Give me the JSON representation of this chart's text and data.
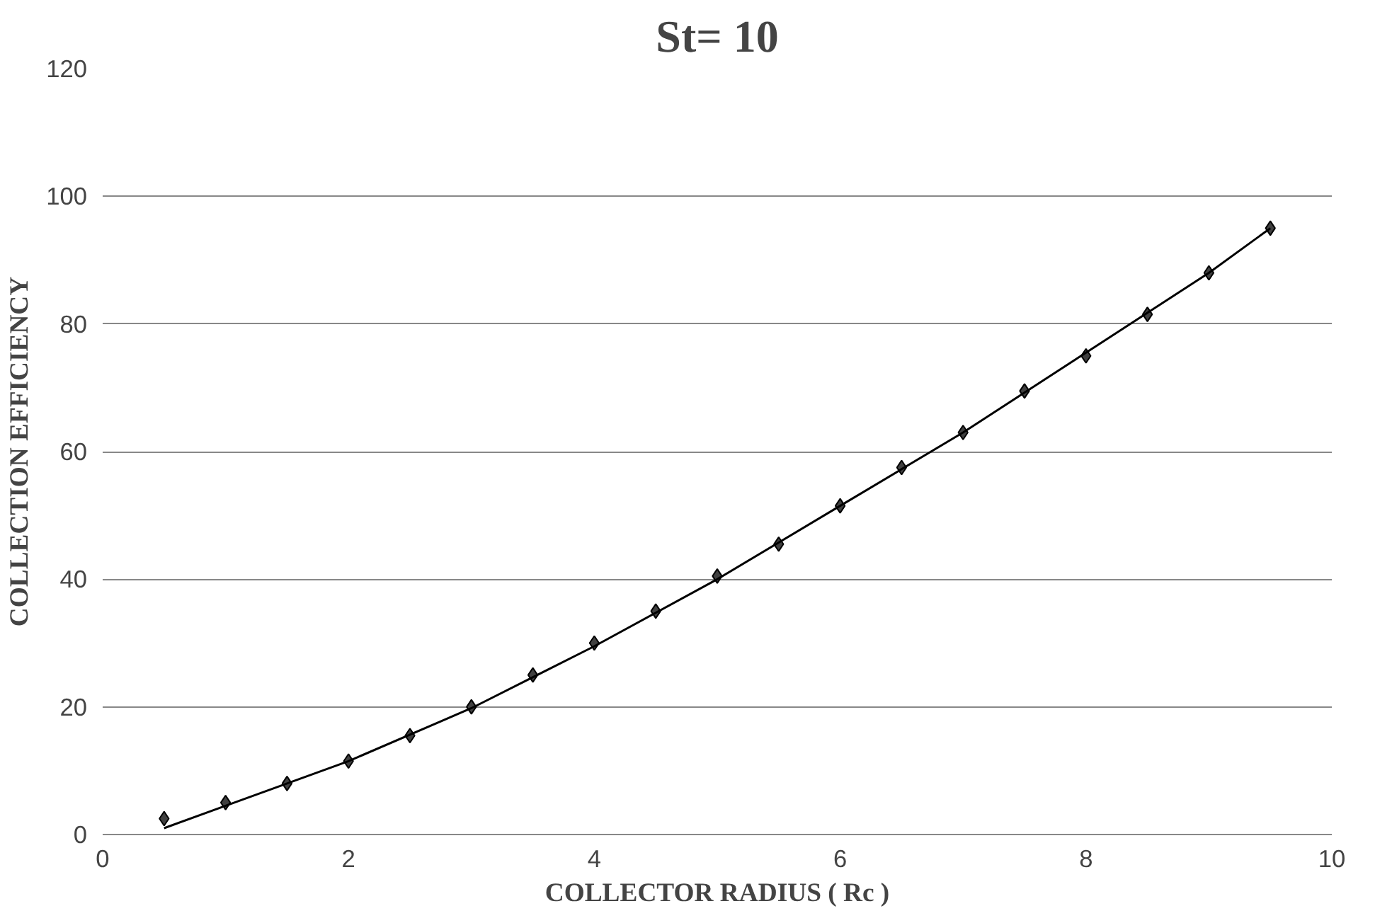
{
  "chart_data": {
    "type": "scatter",
    "title": "St= 10",
    "xlabel": "COLLECTOR RADIUS ( Rc )",
    "ylabel": "COLLECTION EFFICIENCY",
    "x": [
      0.5,
      1,
      1.5,
      2,
      2.5,
      3,
      3.5,
      4,
      4.5,
      5,
      5.5,
      6,
      6.5,
      7,
      7.5,
      8,
      8.5,
      9,
      9.5
    ],
    "series": [
      {
        "color": "#404040",
        "marker": "diamond",
        "values": [
          2.5,
          5,
          8,
          11.5,
          15.5,
          20,
          25,
          30,
          35,
          40.5,
          45.5,
          51.5,
          57.5,
          63,
          69.5,
          75,
          81.5,
          88,
          95
        ]
      },
      {
        "type": "line",
        "color": "#000000",
        "marker": "none",
        "line_style": "solid",
        "x": [
          0.5,
          1,
          2,
          3,
          4,
          5,
          6,
          7,
          8,
          9,
          9.5
        ],
        "values": [
          1,
          4.5,
          11.5,
          19.8,
          29.5,
          40,
          51.5,
          63,
          75.5,
          88,
          95
        ]
      }
    ],
    "xlim": [
      0,
      10
    ],
    "xticks": [
      0,
      2,
      4,
      6,
      8,
      10
    ],
    "ylim": [
      0,
      120
    ],
    "yticks": [
      0,
      20,
      40,
      60,
      80,
      100,
      120
    ],
    "grid": "y"
  }
}
